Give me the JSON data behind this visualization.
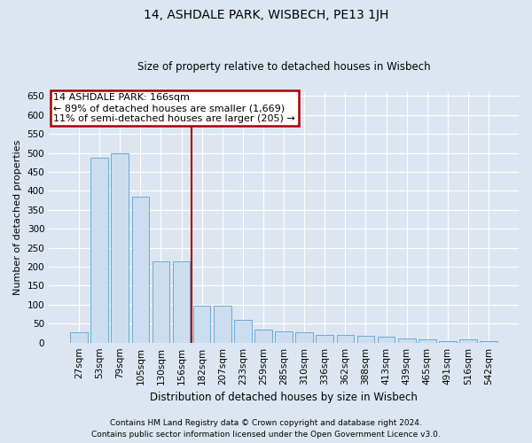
{
  "title": "14, ASHDALE PARK, WISBECH, PE13 1JH",
  "subtitle": "Size of property relative to detached houses in Wisbech",
  "xlabel": "Distribution of detached houses by size in Wisbech",
  "ylabel": "Number of detached properties",
  "footer1": "Contains HM Land Registry data © Crown copyright and database right 2024.",
  "footer2": "Contains public sector information licensed under the Open Government Licence v3.0.",
  "annotation_line1": "14 ASHDALE PARK: 166sqm",
  "annotation_line2": "← 89% of detached houses are smaller (1,669)",
  "annotation_line3": "11% of semi-detached houses are larger (205) →",
  "bar_color": "#ccddf0",
  "bar_edge_color": "#6aaad4",
  "ref_line_color": "#aa0000",
  "annotation_box_edge_color": "#aa0000",
  "categories": [
    "27sqm",
    "53sqm",
    "79sqm",
    "105sqm",
    "130sqm",
    "156sqm",
    "182sqm",
    "207sqm",
    "233sqm",
    "259sqm",
    "285sqm",
    "310sqm",
    "336sqm",
    "362sqm",
    "388sqm",
    "413sqm",
    "439sqm",
    "465sqm",
    "491sqm",
    "516sqm",
    "542sqm"
  ],
  "values": [
    27,
    487,
    500,
    385,
    213,
    213,
    97,
    97,
    60,
    35,
    30,
    27,
    20,
    20,
    17,
    15,
    12,
    8,
    5,
    8,
    5
  ],
  "ref_line_index": 6,
  "ylim": [
    0,
    660
  ],
  "yticks": [
    0,
    50,
    100,
    150,
    200,
    250,
    300,
    350,
    400,
    450,
    500,
    550,
    600,
    650
  ],
  "background_color": "#dde6f0",
  "plot_bg_color": "#dde6f0",
  "title_fontsize": 10,
  "subtitle_fontsize": 8.5,
  "xlabel_fontsize": 8.5,
  "ylabel_fontsize": 8,
  "tick_fontsize": 7.5,
  "annotation_fontsize": 8,
  "footer_fontsize": 6.5
}
